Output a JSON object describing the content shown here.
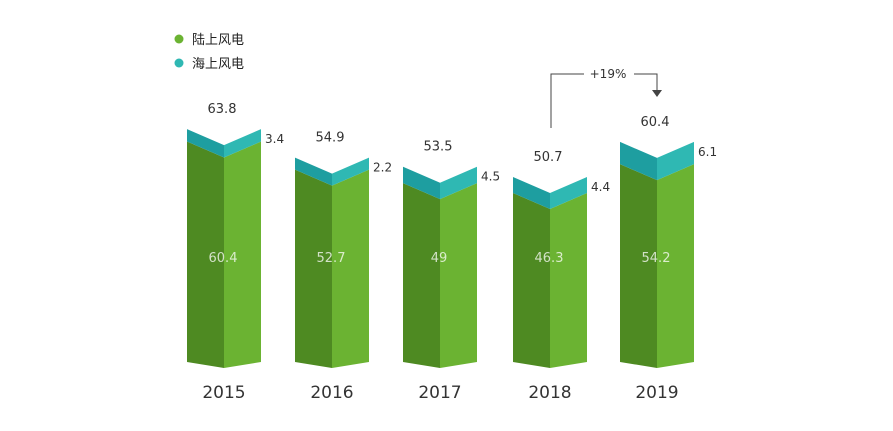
{
  "chart_data": {
    "type": "bar",
    "stacked": true,
    "categories": [
      "2015",
      "2016",
      "2017",
      "2018",
      "2019"
    ],
    "series": [
      {
        "name": "陆上风电",
        "values": [
          60.4,
          52.7,
          49,
          46.3,
          54.2
        ]
      },
      {
        "name": "海上风电",
        "values": [
          3.4,
          2.2,
          4.5,
          4.4,
          6.1
        ]
      }
    ],
    "totals": [
      63.8,
      54.9,
      53.5,
      50.7,
      60.4
    ],
    "total_labels": [
      "63.8",
      "54.9",
      "53.5",
      "50.7",
      "60.4"
    ],
    "onshore_labels": [
      "60.4",
      "52.7",
      "49",
      "46.3",
      "54.2"
    ],
    "offshore_labels": [
      "3.4",
      "2.2",
      "4.5",
      "4.4",
      "6.1"
    ],
    "annotation": "+19%",
    "legend_position": "top-left",
    "grid": false
  },
  "colors": {
    "onshore_front_left": "#4e8a22",
    "onshore_front_right": "#6bb332",
    "offshore_front_left": "#1e9ea0",
    "offshore_front_right": "#2fb8b3",
    "legend_onshore": "#6bb332",
    "legend_offshore": "#2fb8b3"
  }
}
